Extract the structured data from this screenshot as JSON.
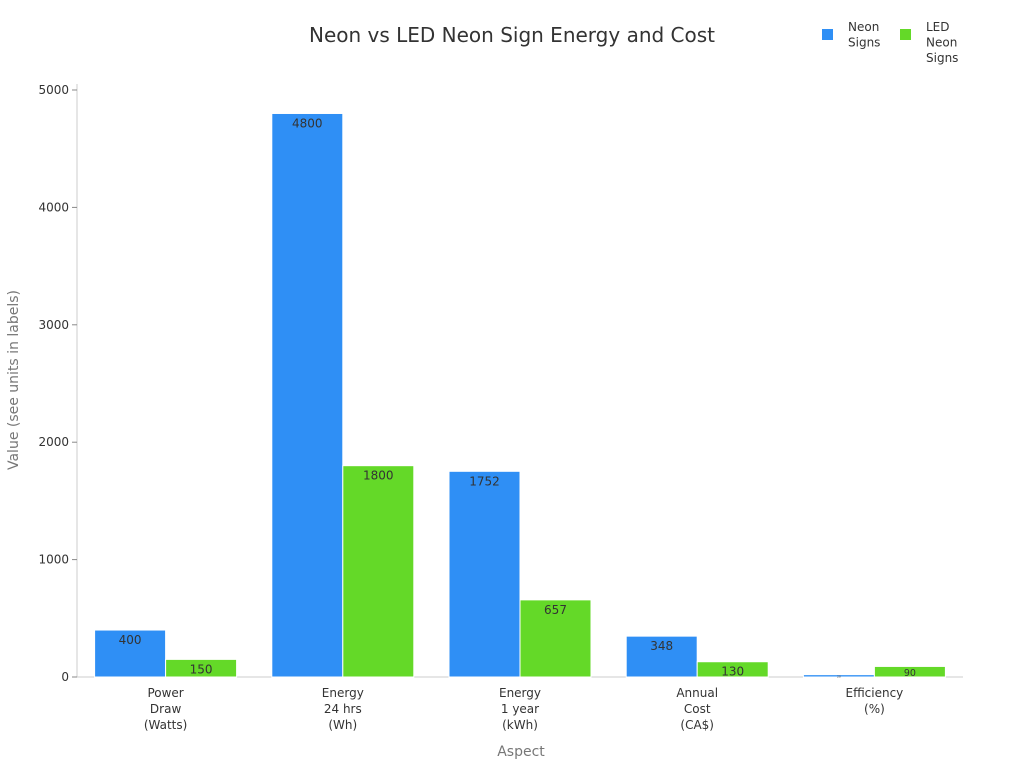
{
  "chart_data": {
    "type": "bar",
    "title": "Neon vs LED Neon Sign Energy and Cost",
    "xlabel": "Aspect",
    "ylabel": "Value (see units in labels)",
    "categories": [
      [
        "Power",
        "Draw",
        "(Watts)"
      ],
      [
        "Energy",
        "24 hrs",
        "(Wh)"
      ],
      [
        "Energy",
        "1 year",
        "(kWh)"
      ],
      [
        "Annual",
        "Cost",
        "(CA$)"
      ],
      [
        "Efficiency",
        "(%)"
      ]
    ],
    "series": [
      {
        "name": [
          "Neon",
          "Signs"
        ],
        "color": "#2f8ff5",
        "values": [
          400,
          4800,
          1752,
          348,
          20
        ]
      },
      {
        "name": [
          "LED",
          "Neon",
          "Signs"
        ],
        "color": "#64d928",
        "values": [
          150,
          1800,
          657,
          130,
          90
        ]
      }
    ],
    "ylim": [
      0,
      5000
    ],
    "yticks": [
      0,
      1000,
      2000,
      3000,
      4000,
      5000
    ],
    "grid": false,
    "legend": "top-right"
  }
}
